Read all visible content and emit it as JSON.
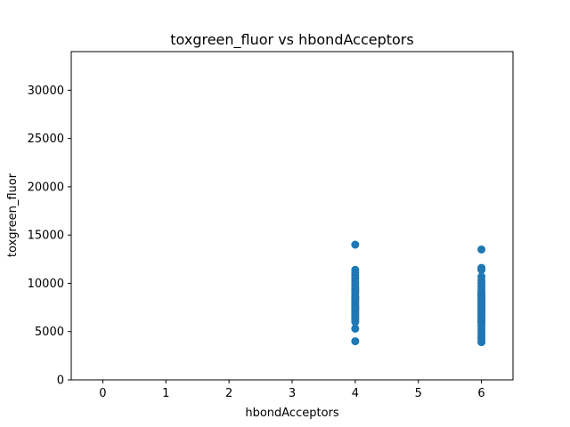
{
  "chart_data": {
    "type": "scatter",
    "title": "toxgreen_fluor vs hbondAcceptors",
    "xlabel": "hbondAcceptors",
    "ylabel": "toxgreen_fluor",
    "xlim": [
      -0.5,
      6.5
    ],
    "ylim": [
      0,
      34000
    ],
    "xticks": [
      0,
      1,
      2,
      3,
      4,
      5,
      6
    ],
    "yticks": [
      0,
      5000,
      10000,
      15000,
      20000,
      25000,
      30000
    ],
    "grid": false,
    "marker_color": "#1f77b4",
    "series": [
      {
        "x": [
          4,
          4,
          4,
          4,
          4,
          4,
          4,
          4,
          4,
          4,
          4,
          4,
          4,
          4,
          4,
          4,
          4,
          4,
          4,
          4,
          4,
          4,
          4,
          4,
          4,
          4,
          4,
          4,
          4,
          4,
          6,
          6,
          6,
          6,
          6,
          6,
          6,
          6,
          6,
          6,
          6,
          6,
          6,
          6,
          6,
          6,
          6,
          6,
          6,
          6,
          6,
          6,
          6,
          6,
          6,
          6,
          6,
          6,
          6,
          6,
          6,
          6,
          6,
          6,
          6
        ],
        "y": [
          14000,
          11400,
          11100,
          10800,
          10500,
          10200,
          9900,
          9600,
          9300,
          9100,
          8900,
          8600,
          8400,
          8200,
          8000,
          7800,
          7600,
          7400,
          7200,
          7000,
          6800,
          6600,
          6400,
          6200,
          6000,
          5300,
          4000,
          9500,
          8500,
          7500,
          13500,
          11600,
          11400,
          10700,
          10300,
          10000,
          9700,
          9400,
          9100,
          8900,
          8700,
          8500,
          8300,
          8100,
          7900,
          7700,
          7500,
          7300,
          7100,
          6900,
          6700,
          6500,
          6300,
          6100,
          5900,
          5600,
          5300,
          5000,
          4700,
          4400,
          4200,
          3900,
          8800,
          7400,
          6000
        ]
      }
    ]
  }
}
